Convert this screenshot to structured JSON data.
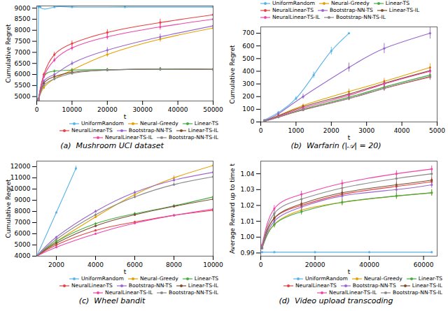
{
  "chart_data": [
    {
      "type": "line",
      "title": "(a)  Mushroom UCI dataset",
      "xlabel": "t",
      "ylabel": "Cumulative Regret",
      "xlim": [
        0,
        50000
      ],
      "ylim": [
        4800,
        9100
      ],
      "xticks": [
        0,
        10000,
        20000,
        30000,
        40000,
        50000
      ],
      "yticks": [
        5000,
        5500,
        6000,
        6500,
        7000,
        7500,
        8000,
        8500,
        9000
      ],
      "grid": false,
      "legend": "lower right",
      "marker": "o",
      "series": [
        {
          "name": "UniformRandom",
          "color": "#56b4e9",
          "x": [
            100,
            500,
            1000,
            5000,
            10000,
            25000,
            50000
          ],
          "values": [
            4820,
            9050,
            9050,
            9050,
            9050,
            9050,
            9050
          ],
          "yerr": [
            20,
            0,
            0,
            0,
            0,
            0,
            0
          ]
        },
        {
          "name": "Neural-Greedy",
          "color": "#e69f00",
          "x": [
            500,
            2000,
            5000,
            10000,
            20000,
            35000,
            50000
          ],
          "values": [
            4900,
            5400,
            5800,
            6200,
            6900,
            7600,
            8100
          ],
          "yerr": [
            30,
            50,
            70,
            90,
            110,
            130,
            150
          ]
        },
        {
          "name": "Linear-TS",
          "color": "#44aa44",
          "x": [
            500,
            2000,
            5000,
            10000,
            20000,
            35000,
            50000
          ],
          "values": [
            4850,
            5900,
            6150,
            6200,
            6220,
            6230,
            6230
          ],
          "yerr": [
            20,
            50,
            60,
            50,
            50,
            50,
            50
          ]
        },
        {
          "name": "NeuralLinear-TS",
          "color": "#e84040",
          "x": [
            500,
            2000,
            5000,
            10000,
            20000,
            35000,
            50000
          ],
          "values": [
            4900,
            6000,
            6900,
            7400,
            7900,
            8350,
            8700
          ],
          "yerr": [
            30,
            70,
            100,
            120,
            130,
            150,
            160
          ]
        },
        {
          "name": "Bootstrap-NN-TS",
          "color": "#9966cc",
          "x": [
            500,
            2000,
            5000,
            10000,
            20000,
            35000,
            50000
          ],
          "values": [
            4900,
            5700,
            6000,
            6500,
            7100,
            7700,
            8200
          ],
          "yerr": [
            30,
            60,
            80,
            100,
            120,
            130,
            150
          ]
        },
        {
          "name": "Linear-TS-IL",
          "color": "#7b4f2e",
          "x": [
            500,
            2000,
            5000,
            10000,
            20000,
            35000,
            50000
          ],
          "values": [
            4850,
            5600,
            5900,
            6100,
            6200,
            6250,
            6240
          ],
          "yerr": [
            20,
            40,
            60,
            70,
            70,
            70,
            70
          ]
        },
        {
          "name": "NeuralLinear-TS-IL",
          "color": "#ee44aa",
          "x": [
            500,
            2000,
            5000,
            10000,
            20000,
            35000,
            50000
          ],
          "values": [
            4900,
            5900,
            6650,
            7200,
            7700,
            8150,
            8500
          ],
          "yerr": [
            30,
            70,
            100,
            120,
            130,
            140,
            150
          ]
        },
        {
          "name": "Bootstrap-NN-TS-IL",
          "color": "#888888",
          "x": [
            500,
            2000,
            5000,
            10000,
            20000,
            35000,
            50000
          ],
          "values": [
            4850,
            5500,
            5800,
            6050,
            6200,
            6250,
            6230
          ],
          "yerr": [
            20,
            40,
            60,
            70,
            70,
            70,
            70
          ]
        }
      ]
    },
    {
      "type": "line",
      "title": "(b)  Warfarin (|𝒜| = 20)",
      "xlabel": "t",
      "ylabel": "Cumulative Regret",
      "xlim": [
        0,
        5000
      ],
      "ylim": [
        0,
        750
      ],
      "xticks": [
        0,
        1000,
        2000,
        3000,
        4000,
        5000
      ],
      "yticks": [
        0,
        100,
        200,
        300,
        400,
        500,
        600,
        700
      ],
      "grid": false,
      "legend": "upper left",
      "marker": "o",
      "series": [
        {
          "name": "UniformRandom",
          "color": "#56b4e9",
          "x": [
            100,
            500,
            1000,
            1500,
            2000,
            2500
          ],
          "values": [
            15,
            75,
            185,
            370,
            560,
            700
          ],
          "yerr": [
            2,
            8,
            15,
            25,
            30,
            0
          ]
        },
        {
          "name": "Neural-Greedy",
          "color": "#e69f00",
          "x": [
            100,
            500,
            1200,
            2500,
            3500,
            4800
          ],
          "values": [
            8,
            50,
            130,
            240,
            320,
            430
          ],
          "yerr": [
            1,
            6,
            12,
            20,
            25,
            30
          ]
        },
        {
          "name": "Linear-TS",
          "color": "#44aa44",
          "x": [
            100,
            500,
            1200,
            2500,
            3500,
            4800
          ],
          "values": [
            6,
            40,
            100,
            195,
            275,
            370
          ],
          "yerr": [
            1,
            5,
            10,
            15,
            20,
            25
          ]
        },
        {
          "name": "NeuralLinear-TS",
          "color": "#e84040",
          "x": [
            100,
            500,
            1200,
            2500,
            3500,
            4800
          ],
          "values": [
            6,
            38,
            95,
            185,
            265,
            355
          ],
          "yerr": [
            1,
            5,
            10,
            15,
            20,
            25
          ]
        },
        {
          "name": "Bootstrap-NN-TS",
          "color": "#9966cc",
          "x": [
            100,
            500,
            1200,
            2500,
            3500,
            4800
          ],
          "values": [
            10,
            65,
            200,
            430,
            580,
            700
          ],
          "yerr": [
            2,
            8,
            20,
            35,
            40,
            45
          ]
        },
        {
          "name": "Linear-TS-IL",
          "color": "#7b4f2e",
          "x": [
            100,
            500,
            1200,
            2500,
            3500,
            4800
          ],
          "values": [
            8,
            48,
            120,
            220,
            305,
            405
          ],
          "yerr": [
            1,
            6,
            12,
            18,
            22,
            28
          ]
        },
        {
          "name": "NeuralLinear-TS-IL",
          "color": "#ee44aa",
          "x": [
            100,
            500,
            1200,
            2500,
            3500,
            4800
          ],
          "values": [
            6,
            42,
            110,
            210,
            300,
            400
          ],
          "yerr": [
            1,
            5,
            11,
            16,
            22,
            27
          ]
        },
        {
          "name": "Bootstrap-NN-TS-IL",
          "color": "#888888",
          "x": [
            100,
            500,
            1200,
            2500,
            3500,
            4800
          ],
          "values": [
            6,
            38,
            95,
            185,
            265,
            360
          ],
          "yerr": [
            1,
            5,
            10,
            15,
            20,
            25
          ]
        }
      ]
    },
    {
      "type": "line",
      "title": "(c)  Wheel bandit",
      "xlabel": "t",
      "ylabel": "Cumulative Regret",
      "xlim": [
        1000,
        10000
      ],
      "ylim": [
        4000,
        12500
      ],
      "xticks": [
        2000,
        4000,
        6000,
        8000,
        10000
      ],
      "yticks": [
        4000,
        5000,
        6000,
        7000,
        8000,
        9000,
        10000,
        11000,
        12000
      ],
      "grid": false,
      "legend": "lower right",
      "marker": "o",
      "series": [
        {
          "name": "UniformRandom",
          "color": "#56b4e9",
          "x": [
            1000,
            2000,
            3000
          ],
          "values": [
            4000,
            7900,
            11850
          ],
          "yerr": [
            0,
            100,
            200
          ]
        },
        {
          "name": "Neural-Greedy",
          "color": "#e69f00",
          "x": [
            1000,
            2000,
            4000,
            6000,
            8000,
            10000
          ],
          "values": [
            4000,
            5300,
            7500,
            9500,
            11000,
            12100
          ],
          "yerr": [
            0,
            80,
            130,
            160,
            180,
            200
          ]
        },
        {
          "name": "Linear-TS",
          "color": "#44aa44",
          "x": [
            1000,
            2000,
            4000,
            6000,
            8000,
            10000
          ],
          "values": [
            4000,
            5300,
            6900,
            7800,
            8500,
            9300
          ],
          "yerr": [
            0,
            60,
            90,
            110,
            120,
            140
          ]
        },
        {
          "name": "NeuralLinear-TS",
          "color": "#e84040",
          "x": [
            1000,
            2000,
            4000,
            6000,
            8000,
            10000
          ],
          "values": [
            4000,
            5000,
            6300,
            7050,
            7650,
            8100
          ],
          "yerr": [
            0,
            50,
            70,
            90,
            100,
            110
          ]
        },
        {
          "name": "Bootstrap-NN-TS",
          "color": "#9966cc",
          "x": [
            1000,
            2000,
            4000,
            6000,
            8000,
            10000
          ],
          "values": [
            4000,
            5700,
            8000,
            9700,
            10800,
            11500
          ],
          "yerr": [
            0,
            80,
            120,
            150,
            170,
            180
          ]
        },
        {
          "name": "Linear-TS-IL",
          "color": "#7b4f2e",
          "x": [
            1000,
            2000,
            4000,
            6000,
            8000,
            10000
          ],
          "values": [
            4000,
            5150,
            6700,
            7700,
            8450,
            9100
          ],
          "yerr": [
            0,
            60,
            85,
            100,
            110,
            125
          ]
        },
        {
          "name": "NeuralLinear-TS-IL",
          "color": "#ee44aa",
          "x": [
            1000,
            2000,
            4000,
            6000,
            8000,
            10000
          ],
          "values": [
            4000,
            4800,
            6000,
            6950,
            7650,
            8200
          ],
          "yerr": [
            0,
            50,
            70,
            85,
            95,
            105
          ]
        },
        {
          "name": "Bootstrap-NN-TS-IL",
          "color": "#888888",
          "x": [
            1000,
            2000,
            4000,
            6000,
            8000,
            10000
          ],
          "values": [
            4000,
            5500,
            7700,
            9300,
            10400,
            11100
          ],
          "yerr": [
            0,
            75,
            110,
            140,
            155,
            165
          ]
        }
      ]
    },
    {
      "type": "line",
      "title": "(d)  Video upload transcoding",
      "xlabel": "t",
      "ylabel": "Average Reward up to time t",
      "xlim": [
        0,
        65000
      ],
      "ylim": [
        0.988,
        1.048
      ],
      "xticks": [
        0,
        20000,
        40000,
        60000
      ],
      "yticks": [
        0.99,
        {
          "value": 1.0,
          "label": "1.00"
        },
        1.01,
        1.02,
        1.03,
        1.04
      ],
      "grid": false,
      "legend": "lower right",
      "marker": "o",
      "series": [
        {
          "name": "UniformRandom",
          "color": "#56b4e9",
          "x": [
            500,
            5000,
            20000,
            40000,
            63000
          ],
          "values": [
            0.9905,
            0.9905,
            0.9905,
            0.9905,
            0.9905
          ],
          "yerr": [
            0.0005,
            0.0005,
            0.0005,
            0.0005,
            0.0005
          ]
        },
        {
          "name": "Neural-Greedy",
          "color": "#e69f00",
          "x": [
            500,
            5000,
            15000,
            30000,
            50000,
            63000
          ],
          "values": [
            0.993,
            1.008,
            1.017,
            1.022,
            1.026,
            1.028
          ],
          "yerr": [
            0.001,
            0.002,
            0.002,
            0.002,
            0.002,
            0.002
          ]
        },
        {
          "name": "Linear-TS",
          "color": "#44aa44",
          "x": [
            500,
            5000,
            15000,
            30000,
            50000,
            63000
          ],
          "values": [
            0.993,
            1.008,
            1.016,
            1.022,
            1.026,
            1.028
          ],
          "yerr": [
            0.001,
            0.002,
            0.002,
            0.002,
            0.002,
            0.002
          ]
        },
        {
          "name": "NeuralLinear-TS",
          "color": "#e84040",
          "x": [
            500,
            5000,
            15000,
            30000,
            50000,
            63000
          ],
          "values": [
            0.994,
            1.012,
            1.02,
            1.027,
            1.032,
            1.035
          ],
          "yerr": [
            0.001,
            0.002,
            0.002,
            0.002,
            0.002,
            0.002
          ]
        },
        {
          "name": "Bootstrap-NN-TS",
          "color": "#9966cc",
          "x": [
            500,
            5000,
            15000,
            30000,
            50000,
            63000
          ],
          "values": [
            0.993,
            1.01,
            1.019,
            1.026,
            1.03,
            1.033
          ],
          "yerr": [
            0.001,
            0.002,
            0.002,
            0.002,
            0.002,
            0.002
          ]
        },
        {
          "name": "Linear-TS-IL",
          "color": "#7b4f2e",
          "x": [
            500,
            5000,
            15000,
            30000,
            50000,
            63000
          ],
          "values": [
            0.994,
            1.012,
            1.021,
            1.028,
            1.033,
            1.036
          ],
          "yerr": [
            0.001,
            0.002,
            0.002,
            0.002,
            0.002,
            0.002
          ]
        },
        {
          "name": "NeuralLinear-TS-IL",
          "color": "#ee44aa",
          "x": [
            500,
            5000,
            15000,
            30000,
            50000,
            63000
          ],
          "values": [
            0.995,
            1.018,
            1.027,
            1.034,
            1.04,
            1.043
          ],
          "yerr": [
            0.001,
            0.002,
            0.002,
            0.002,
            0.002,
            0.002
          ]
        },
        {
          "name": "Bootstrap-NN-TS-IL",
          "color": "#888888",
          "x": [
            500,
            5000,
            15000,
            30000,
            50000,
            63000
          ],
          "values": [
            0.994,
            1.015,
            1.024,
            1.031,
            1.037,
            1.04
          ],
          "yerr": [
            0.001,
            0.002,
            0.002,
            0.002,
            0.002,
            0.002
          ]
        }
      ]
    }
  ]
}
